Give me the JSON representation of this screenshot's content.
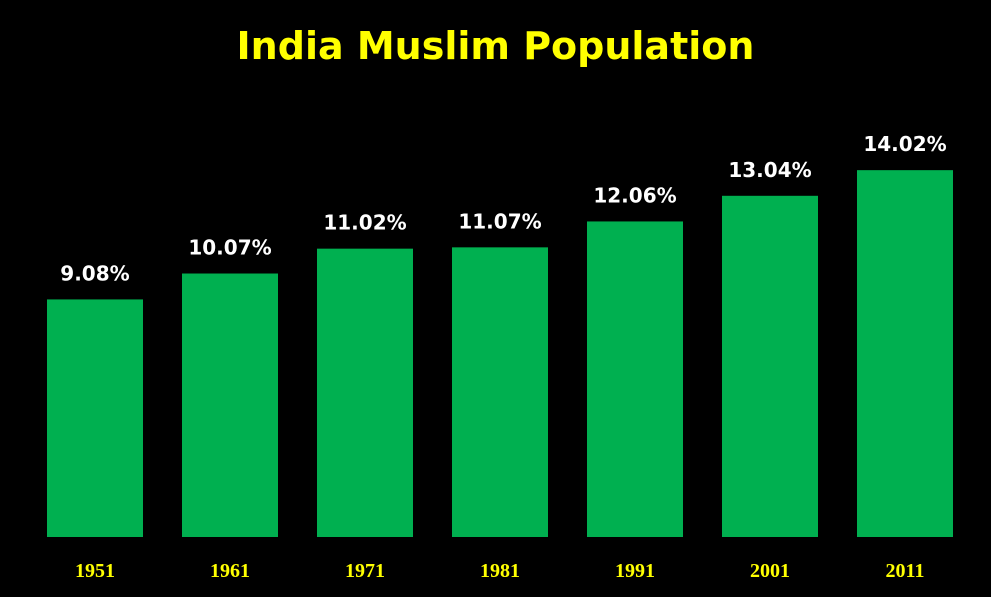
{
  "chart_data": {
    "type": "bar",
    "title": "India Muslim Population",
    "categories": [
      "1951",
      "1961",
      "1971",
      "1981",
      "1991",
      "2001",
      "2011"
    ],
    "values": [
      9.08,
      10.07,
      11.02,
      11.07,
      12.06,
      13.04,
      14.02
    ],
    "value_labels": [
      "9.08%",
      "10.07%",
      "11.02%",
      "11.07%",
      "12.06%",
      "13.04%",
      "14.02%"
    ],
    "xlabel": "",
    "ylabel": "",
    "ylim": [
      0,
      14.5
    ],
    "grid": false,
    "legend": "none"
  },
  "colors": {
    "background": "#000000",
    "bar": "#00b050",
    "title": "#ffff00",
    "value_label": "#ffffff",
    "tick_label": "#ffff00"
  }
}
